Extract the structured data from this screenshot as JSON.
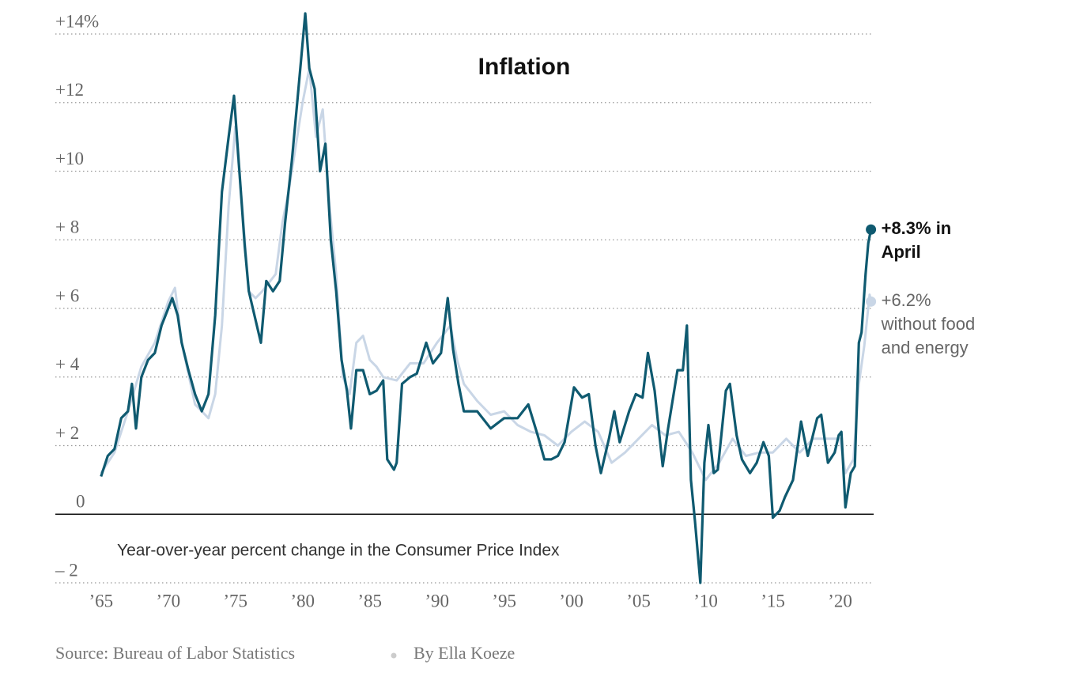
{
  "chart_data": {
    "type": "line",
    "title": "Inflation",
    "note": "Year-over-year percent change in the Consumer Price Index",
    "source": "Source: Bureau of Labor Statistics",
    "byline": "By Ella Koeze",
    "xlim": [
      1961.6,
      2022.5
    ],
    "ylim": [
      -2,
      14
    ],
    "xticks": [
      {
        "value": 1965,
        "label": "’65"
      },
      {
        "value": 1970,
        "label": "’70"
      },
      {
        "value": 1975,
        "label": "’75"
      },
      {
        "value": 1980,
        "label": "’80"
      },
      {
        "value": 1985,
        "label": "’85"
      },
      {
        "value": 1990,
        "label": "’90"
      },
      {
        "value": 1995,
        "label": "’95"
      },
      {
        "value": 2000,
        "label": "’00"
      },
      {
        "value": 2005,
        "label": "’05"
      },
      {
        "value": 2010,
        "label": "’10"
      },
      {
        "value": 2015,
        "label": "’15"
      },
      {
        "value": 2020,
        "label": "’20"
      }
    ],
    "yticks": [
      {
        "value": 14,
        "label": "+14%"
      },
      {
        "value": 12,
        "label": "+12"
      },
      {
        "value": 10,
        "label": "+10"
      },
      {
        "value": 8,
        "label": "+ 8"
      },
      {
        "value": 6,
        "label": "+ 6"
      },
      {
        "value": 4,
        "label": "+ 4"
      },
      {
        "value": 2,
        "label": "+ 2"
      },
      0,
      {
        "value": -2,
        "label": "– 2"
      }
    ],
    "grid": true,
    "series": [
      {
        "color": "#0f5a70",
        "x": [
          1965.0,
          1965.5,
          1966.0,
          1966.5,
          1967.0,
          1967.3,
          1967.6,
          1968.0,
          1968.5,
          1969.0,
          1969.5,
          1970.0,
          1970.3,
          1970.7,
          1971.0,
          1971.5,
          1972.0,
          1972.5,
          1973.0,
          1973.5,
          1974.0,
          1974.5,
          1974.9,
          1975.3,
          1975.7,
          1976.0,
          1976.6,
          1976.9,
          1977.3,
          1977.8,
          1978.3,
          1978.7,
          1979.2,
          1979.6,
          1980.2,
          1980.5,
          1980.9,
          1981.3,
          1981.7,
          1982.1,
          1982.5,
          1982.9,
          1983.3,
          1983.6,
          1984.0,
          1984.5,
          1985.0,
          1985.5,
          1986.0,
          1986.3,
          1986.8,
          1987.0,
          1987.4,
          1988.0,
          1988.5,
          1989.2,
          1989.7,
          1990.3,
          1990.8,
          1991.2,
          1991.6,
          1992.0,
          1993.0,
          1994.0,
          1995.0,
          1996.0,
          1996.8,
          1997.5,
          1998.0,
          1998.5,
          1999.0,
          1999.5,
          2000.2,
          2000.8,
          2001.3,
          2001.8,
          2002.2,
          2002.8,
          2003.2,
          2003.6,
          2004.3,
          2004.8,
          2005.3,
          2005.7,
          2006.2,
          2006.8,
          2007.2,
          2007.9,
          2008.3,
          2008.6,
          2008.9,
          2009.2,
          2009.6,
          2009.9,
          2010.2,
          2010.6,
          2010.9,
          2011.5,
          2011.8,
          2012.3,
          2012.7,
          2013.3,
          2013.8,
          2014.3,
          2014.7,
          2015.0,
          2015.5,
          2015.9,
          2016.5,
          2017.1,
          2017.6,
          2018.3,
          2018.6,
          2019.1,
          2019.6,
          2019.9,
          2020.1,
          2020.4,
          2020.8,
          2021.1,
          2021.4,
          2021.6,
          2021.9,
          2022.1,
          2022.3
        ],
        "values": [
          1.1,
          1.7,
          1.9,
          2.8,
          3.0,
          3.8,
          2.5,
          4.0,
          4.5,
          4.7,
          5.5,
          6.0,
          6.3,
          5.8,
          5.0,
          4.2,
          3.5,
          3.0,
          3.5,
          5.8,
          9.4,
          11.0,
          12.2,
          10.0,
          7.8,
          6.5,
          5.5,
          5.0,
          6.8,
          6.5,
          6.8,
          8.5,
          10.3,
          12.0,
          14.6,
          13.0,
          12.4,
          10.0,
          10.8,
          8.0,
          6.5,
          4.5,
          3.6,
          2.5,
          4.2,
          4.2,
          3.5,
          3.6,
          3.9,
          1.6,
          1.3,
          1.5,
          3.8,
          4.0,
          4.1,
          5.0,
          4.4,
          4.7,
          6.3,
          4.8,
          3.8,
          3.0,
          3.0,
          2.5,
          2.8,
          2.8,
          3.2,
          2.3,
          1.6,
          1.6,
          1.7,
          2.1,
          3.7,
          3.4,
          3.5,
          2.0,
          1.2,
          2.2,
          3.0,
          2.1,
          3.0,
          3.5,
          3.4,
          4.7,
          3.6,
          1.4,
          2.5,
          4.2,
          4.2,
          5.5,
          1.0,
          -0.2,
          -2.0,
          1.5,
          2.6,
          1.2,
          1.3,
          3.6,
          3.8,
          2.3,
          1.6,
          1.2,
          1.5,
          2.1,
          1.7,
          -0.1,
          0.1,
          0.5,
          1.0,
          2.7,
          1.7,
          2.8,
          2.9,
          1.5,
          1.8,
          2.3,
          2.4,
          0.2,
          1.2,
          1.4,
          5.0,
          5.3,
          7.0,
          7.9,
          8.3
        ],
        "annotation": [
          "+8.3% in",
          "April"
        ],
        "annotation_color": "#111",
        "annotation_weight": "bold"
      },
      {
        "color": "#c9d6e6",
        "x": [
          1965,
          1966,
          1967,
          1968,
          1969,
          1970,
          1970.5,
          1971,
          1972,
          1973,
          1973.5,
          1974,
          1974.5,
          1975,
          1975.5,
          1976,
          1976.5,
          1977,
          1978,
          1978.5,
          1979,
          1980,
          1980.5,
          1981,
          1981.5,
          1982,
          1982.5,
          1983,
          1983.5,
          1984,
          1984.5,
          1985,
          1985.5,
          1986,
          1987,
          1988,
          1989,
          1990,
          1991,
          1991.5,
          1992,
          1993,
          1994,
          1995,
          1996,
          1997,
          1998,
          1999,
          2000,
          2001,
          2002,
          2003,
          2004,
          2005,
          2006,
          2007,
          2008,
          2009,
          2010,
          2011,
          2012,
          2013,
          2014,
          2015,
          2016,
          2017,
          2018,
          2019,
          2020,
          2020.4,
          2021,
          2021.4,
          2021.8,
          2022.2,
          2022.3
        ],
        "values": [
          1.2,
          1.8,
          3.0,
          4.3,
          5.0,
          6.2,
          6.6,
          5.0,
          3.2,
          2.8,
          3.5,
          5.5,
          9.0,
          11.3,
          9.0,
          6.5,
          6.3,
          6.5,
          7.0,
          8.5,
          9.5,
          12.0,
          13.0,
          11.0,
          11.8,
          9.0,
          7.0,
          4.0,
          3.5,
          5.0,
          5.2,
          4.5,
          4.3,
          4.0,
          3.9,
          4.4,
          4.4,
          5.0,
          5.5,
          4.5,
          3.8,
          3.3,
          2.9,
          3.0,
          2.6,
          2.4,
          2.3,
          2.0,
          2.4,
          2.7,
          2.4,
          1.5,
          1.8,
          2.2,
          2.6,
          2.3,
          2.4,
          1.8,
          1.0,
          1.5,
          2.2,
          1.7,
          1.8,
          1.8,
          2.2,
          1.8,
          2.2,
          2.2,
          2.2,
          1.2,
          1.6,
          3.8,
          4.9,
          6.4,
          6.2
        ],
        "annotation": [
          "+6.2%",
          "without food",
          "and energy"
        ],
        "annotation_color": "#666",
        "annotation_weight": "normal"
      }
    ]
  }
}
